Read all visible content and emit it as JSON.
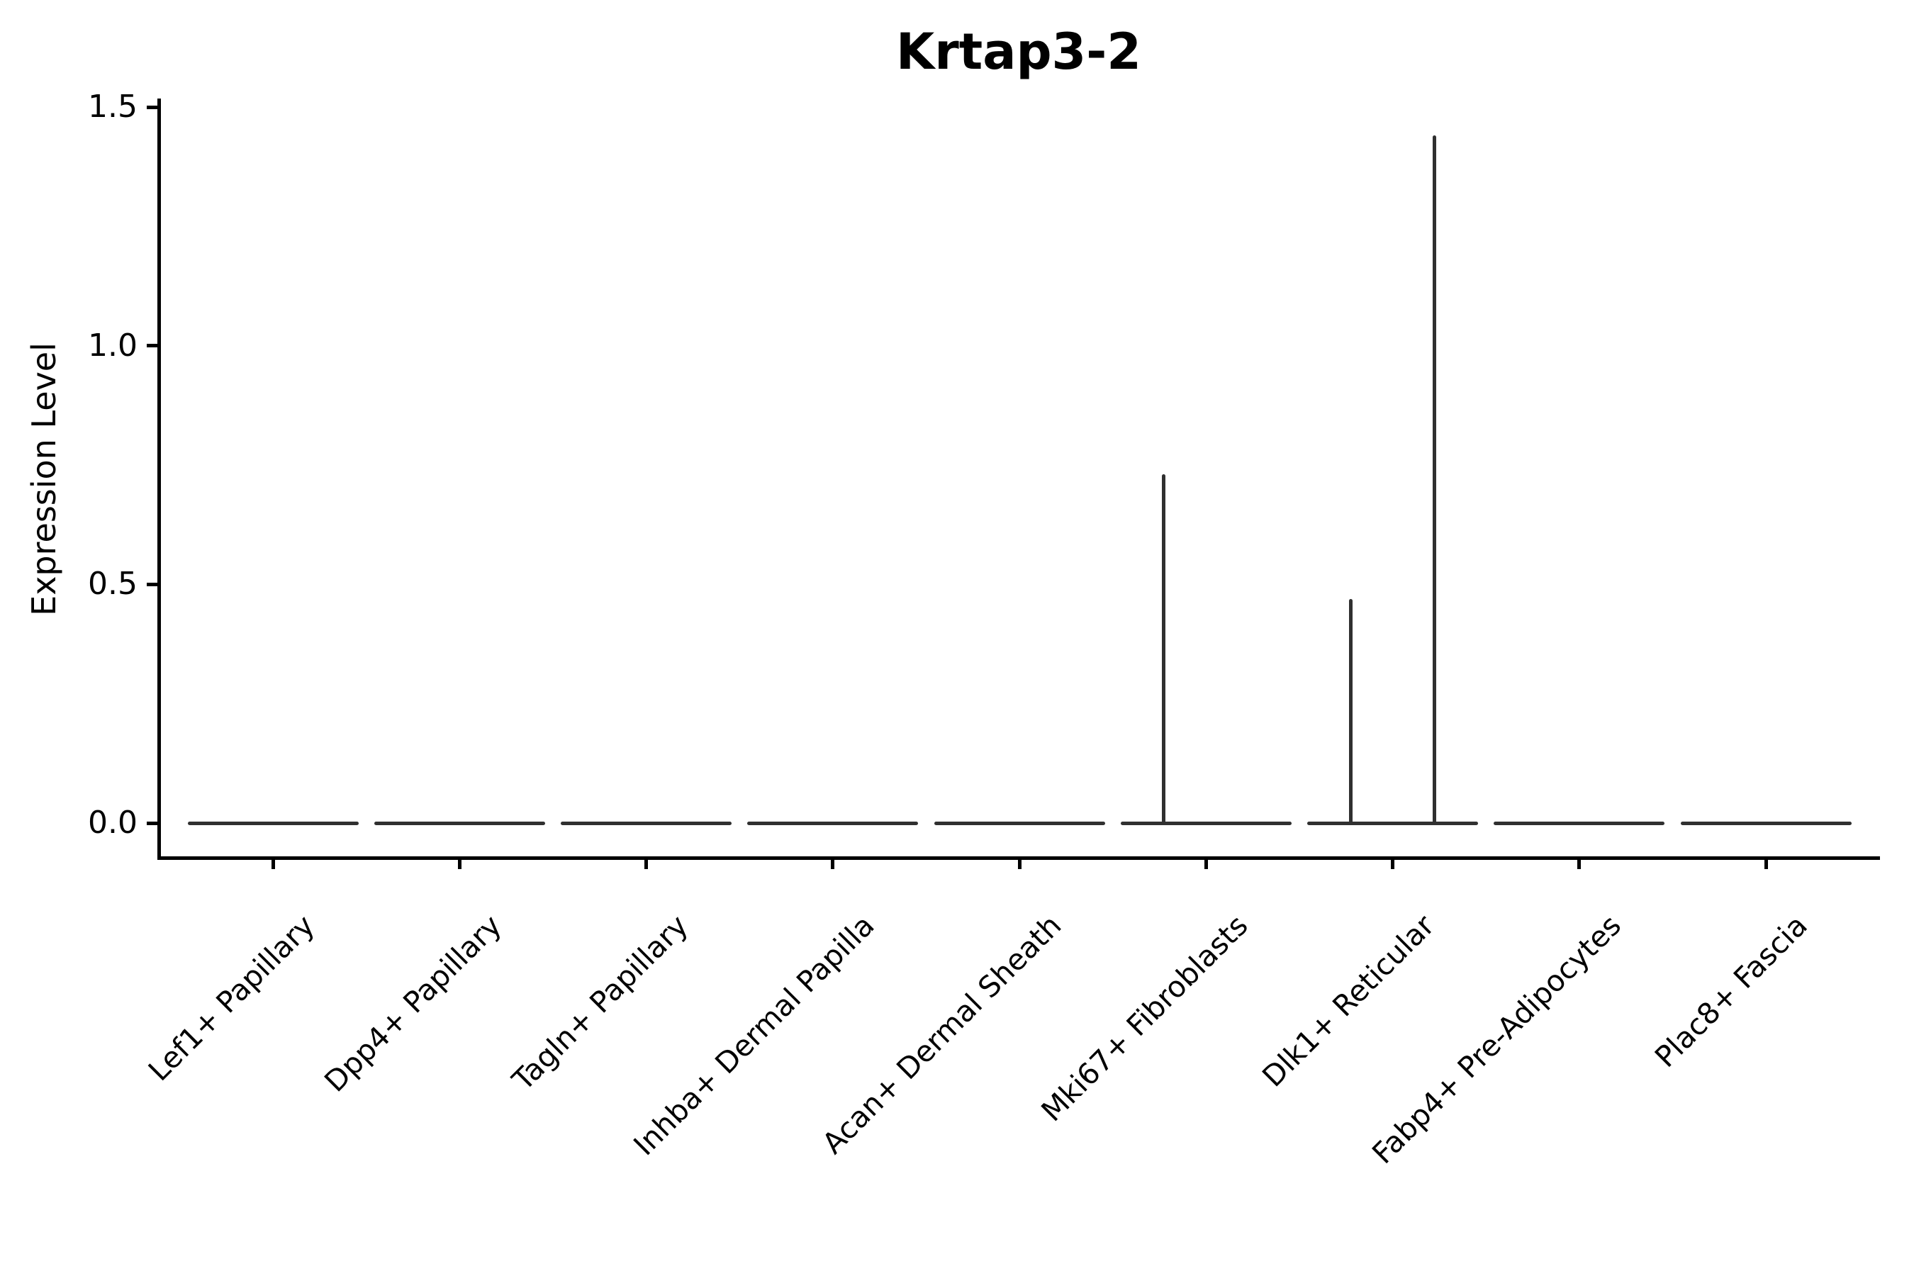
{
  "title": "Krtap3-2",
  "y_axis": {
    "label": "Expression Level",
    "tick_labels": [
      "0.0",
      "0.5",
      "1.0",
      "1.5"
    ],
    "tick_values": [
      0.0,
      0.5,
      1.0,
      1.5
    ]
  },
  "colors": {
    "violin_stroke": "#303030",
    "axis": "#000000",
    "background": "#ffffff"
  },
  "chart_data": {
    "type": "violin",
    "title": "Krtap3-2",
    "xlabel": "",
    "ylabel": "Expression Level",
    "ylim": [
      -0.07,
      1.52
    ],
    "yticks": [
      0.0,
      0.5,
      1.0,
      1.5
    ],
    "grid": false,
    "legend": false,
    "categories": [
      "Lef1+ Papillary",
      "Dpp4+ Papillary",
      "Tagln+ Papillary",
      "Inhba+ Dermal Papilla",
      "Acan+ Dermal Sheath",
      "Mki67+ Fibroblasts",
      "Dlk1+ Reticular",
      "Fabp4+ Pre-Adipocytes",
      "Plac8+ Fascia"
    ],
    "description": "Violin plot of Krtap3-2 expression; all populations collapse to a flat line at 0 with rare expressing cells producing thin vertical spikes.",
    "violins": [
      {
        "category": "Lef1+ Papillary",
        "baseline_value": 0.0,
        "spikes": []
      },
      {
        "category": "Dpp4+ Papillary",
        "baseline_value": 0.0,
        "spikes": []
      },
      {
        "category": "Tagln+ Papillary",
        "baseline_value": 0.0,
        "spikes": []
      },
      {
        "category": "Inhba+ Dermal Papilla",
        "baseline_value": 0.0,
        "spikes": []
      },
      {
        "category": "Acan+ Dermal Sheath",
        "baseline_value": 0.0,
        "spikes": []
      },
      {
        "category": "Mki67+ Fibroblasts",
        "baseline_value": 0.0,
        "spikes": [
          {
            "value": 0.73,
            "x_offset_frac": -0.228
          }
        ]
      },
      {
        "category": "Dlk1+ Reticular",
        "baseline_value": 0.0,
        "spikes": [
          {
            "value": 0.47,
            "x_offset_frac": -0.224
          },
          {
            "value": 1.44,
            "x_offset_frac": 0.224
          }
        ]
      },
      {
        "category": "Fabp4+ Pre-Adipocytes",
        "baseline_value": 0.0,
        "spikes": []
      },
      {
        "category": "Plac8+ Fascia",
        "baseline_value": 0.0,
        "spikes": []
      }
    ]
  }
}
